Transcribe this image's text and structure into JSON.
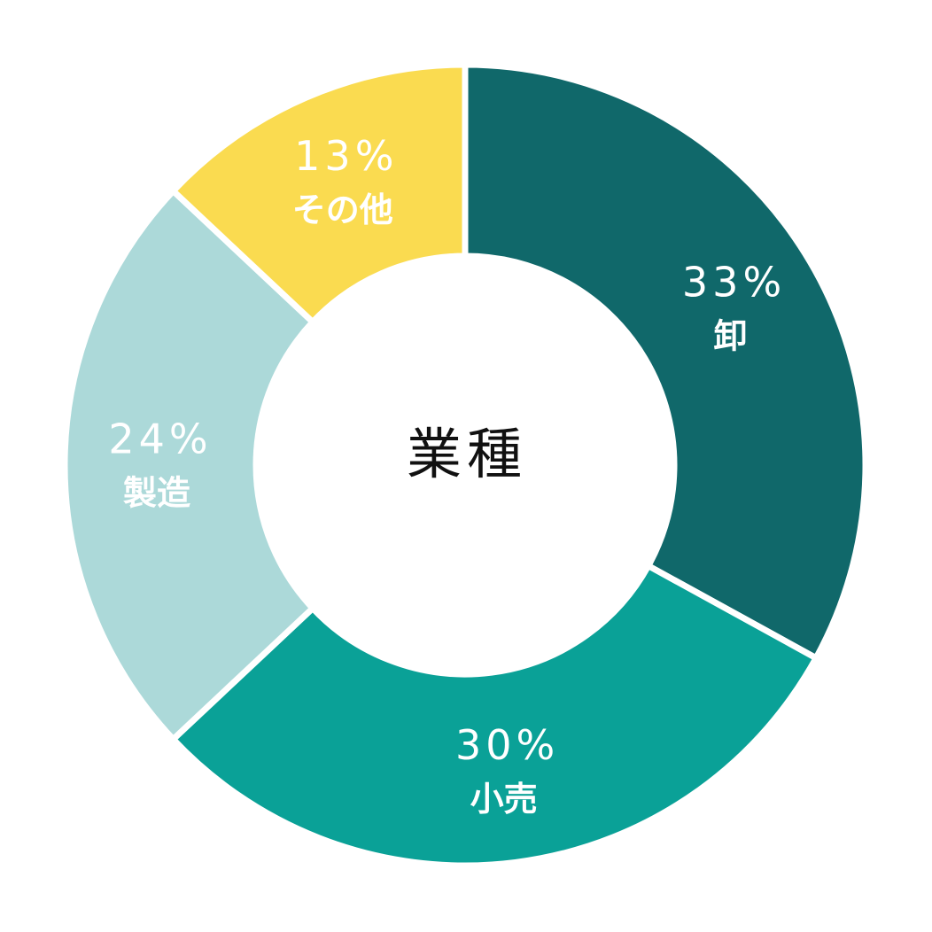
{
  "chart_data": {
    "type": "donut",
    "title": "業種",
    "categories": [
      "卸",
      "小売",
      "製造",
      "その他"
    ],
    "values": [
      33,
      30,
      24,
      13
    ],
    "value_labels": [
      "33%",
      "30%",
      "24%",
      "13%"
    ],
    "colors": [
      "#10686a",
      "#0aa197",
      "#acd9d9",
      "#fadb50"
    ]
  }
}
